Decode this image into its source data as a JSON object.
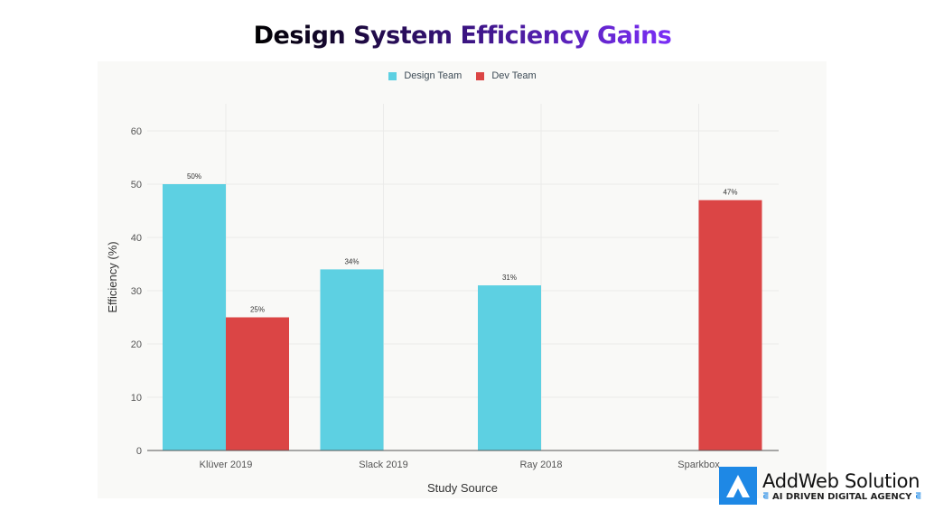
{
  "title": "Design System Efficiency Gains",
  "chart_data": {
    "type": "bar",
    "title": "Design System Efficiency Gains",
    "xlabel": "Study Source",
    "ylabel": "Efficiency (%)",
    "ylim": [
      0,
      60
    ],
    "yticks": [
      0,
      10,
      20,
      30,
      40,
      50,
      60
    ],
    "categories": [
      "Klüver 2019",
      "Slack 2019",
      "Ray 2018",
      "Sparkbox"
    ],
    "series": [
      {
        "name": "Design Team",
        "color": "#5dd0e2",
        "values": [
          50,
          34,
          31,
          null
        ],
        "labels": [
          "50%",
          "34%",
          "31%",
          ""
        ]
      },
      {
        "name": "Dev Team",
        "color": "#db4545",
        "values": [
          25,
          null,
          null,
          47
        ],
        "labels": [
          "25%",
          "",
          "",
          "47%"
        ]
      }
    ],
    "legend": "top-center",
    "grid": true
  },
  "logo": {
    "name": "AddWeb Solution",
    "tagline": "AI DRIVEN DIGITAL AGENCY"
  }
}
